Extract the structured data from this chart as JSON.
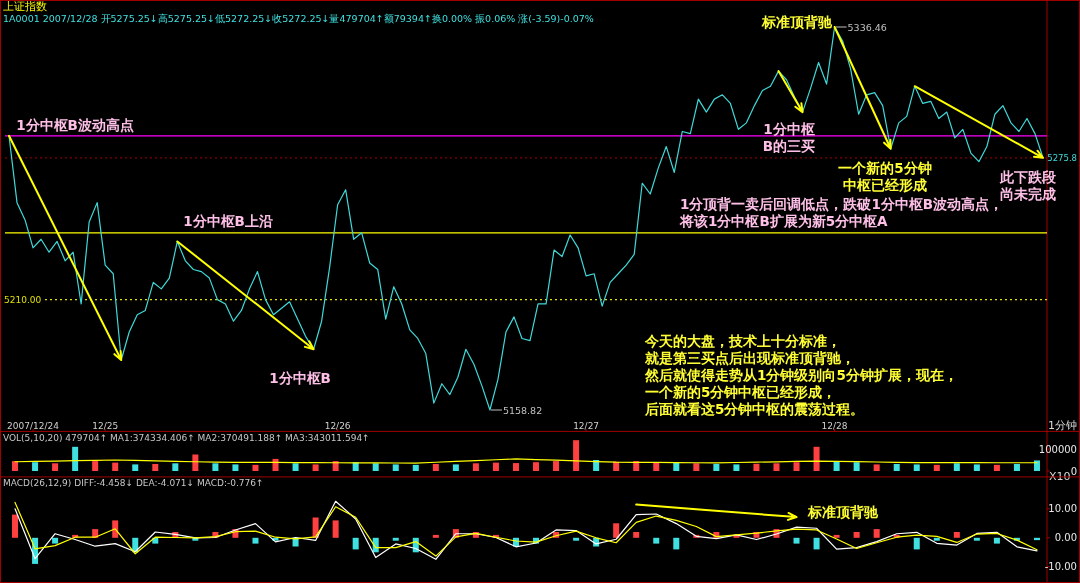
{
  "chart_data": [
    {
      "type": "line",
      "title": "上证指数",
      "subtitle": "1A0001 2007/12/28 开5275.25↓高5275.25↓低5272.25↓收5272.25↓量479704↑额79394↑换0.00% 振0.06% 涨(-3.59)-0.07%",
      "tick_labels": "x",
      "categories": [
        null,
        null,
        null,
        "2007/12/24",
        null,
        null,
        null,
        null,
        null,
        null,
        null,
        null,
        "12/25",
        null,
        null,
        null,
        null,
        null,
        null,
        null,
        null,
        null,
        null,
        null,
        null,
        null,
        null,
        null,
        null,
        null,
        null,
        null,
        null,
        null,
        null,
        null,
        null,
        null,
        null,
        null,
        null,
        "12/26",
        null,
        null,
        null,
        null,
        null,
        null,
        null,
        null,
        null,
        null,
        null,
        null,
        null,
        null,
        null,
        null,
        null,
        null,
        null,
        null,
        null,
        null,
        null,
        null,
        null,
        null,
        null,
        null,
        null,
        null,
        "12/27",
        null,
        null,
        null,
        null,
        null,
        null,
        null,
        null,
        null,
        null,
        null,
        null,
        null,
        null,
        null,
        null,
        null,
        null,
        null,
        null,
        null,
        null,
        null,
        null,
        null,
        null,
        null,
        null,
        null,
        null,
        "12/28",
        null,
        null,
        null,
        null,
        null,
        null,
        null,
        null,
        null,
        null,
        null,
        null,
        null,
        null,
        null,
        null,
        null,
        null,
        null,
        null,
        null,
        null,
        null,
        null,
        null,
        null
      ],
      "series": [
        {
          "color": "#40d8d8",
          "values": [
            5286,
            5255,
            5247,
            5234,
            5238,
            5232,
            5237,
            5228,
            5232,
            5208,
            5246,
            5255,
            5226,
            5222,
            5182,
            5195,
            5203,
            5205,
            5218,
            5215,
            5220,
            5237,
            5228,
            5224,
            5223,
            5220,
            5210,
            5208,
            5200,
            5205,
            5215,
            5223,
            5210,
            5203,
            5206,
            5209,
            5201,
            5193,
            5187,
            5200,
            5225,
            5254,
            5261,
            5238,
            5241,
            5227,
            5224,
            5201,
            5216,
            5208,
            5196,
            5192,
            5185,
            5162,
            5171,
            5166,
            5174,
            5187,
            5180,
            5170,
            5158.82,
            5173,
            5195,
            5202,
            5192,
            5191,
            5208,
            5208,
            5233,
            5230,
            5240,
            5234,
            5221,
            5222,
            5207,
            5218,
            5222,
            5226,
            5231,
            5264,
            5259,
            5271,
            5281,
            5269,
            5288,
            5287,
            5303,
            5297,
            5303,
            5305,
            5301,
            5289,
            5292,
            5300,
            5307,
            5309,
            5316,
            5312,
            5304,
            5297,
            5308,
            5320,
            5310,
            5336.46,
            5330,
            5317,
            5296,
            5305,
            5306,
            5300,
            5280,
            5292,
            5295,
            5309,
            5301,
            5302,
            5294,
            5297,
            5285,
            5289,
            5278,
            5274,
            5281,
            5296,
            5300,
            5292,
            5288,
            5294,
            5287,
            5275.8
          ],
          "value_labels": [
            null,
            null,
            null,
            null,
            null,
            null,
            null,
            null,
            null,
            null,
            null,
            null,
            null,
            null,
            null,
            null,
            null,
            null,
            null,
            null,
            null,
            null,
            null,
            null,
            null,
            null,
            null,
            null,
            null,
            null,
            null,
            null,
            null,
            null,
            null,
            null,
            null,
            null,
            null,
            null,
            null,
            null,
            null,
            null,
            null,
            null,
            null,
            null,
            null,
            null,
            null,
            null,
            null,
            null,
            null,
            null,
            null,
            null,
            null,
            null,
            "5158.82",
            null,
            null,
            null,
            null,
            null,
            null,
            null,
            null,
            null,
            null,
            null,
            null,
            null,
            null,
            null,
            null,
            null,
            null,
            null,
            null,
            null,
            null,
            null,
            null,
            null,
            null,
            null,
            null,
            null,
            null,
            null,
            null,
            null,
            null,
            null,
            null,
            null,
            null,
            null,
            null,
            null,
            null,
            "5336.46",
            null,
            null,
            null,
            null,
            null,
            null,
            null,
            null,
            null,
            null,
            null,
            null,
            null,
            null,
            null,
            null,
            null,
            null,
            null,
            null,
            null,
            null,
            null,
            null,
            null,
            null
          ]
        }
      ],
      "ref_lines": [
        {
          "axis": "y",
          "value": 5286,
          "label": null,
          "color": "#ff00ff"
        },
        {
          "axis": "y",
          "value": 5241,
          "label": null,
          "color": "#ffff00"
        },
        {
          "axis": "y",
          "value": 5210,
          "label": "5210.00",
          "color": "#e0e000",
          "line_style": "dotted"
        },
        {
          "axis": "y",
          "value": 5275.8,
          "label": "5275.8",
          "color": "#800000",
          "line_style": "dotted"
        }
      ],
      "annotations": [
        "1分中枢B波动高点",
        "1分中枢B上沿",
        "1分中枢B",
        "标准顶背驰",
        "1分中枢B的三买",
        "一个新的5分钟中枢已经形成",
        "此下跌段尚未完成",
        "1分顶背一卖后回调低点，跌破1分中枢B波动高点，将该1分中枢B扩展为新5分中枢A",
        "今天的大盘，技术上十分标准，就是第三买点后出现标准顶背驰，然后就使得走势从1分钟级别向5分钟扩展，现在，一个新的5分钟中枢已经形成，后面就看这5分钟中枢的震荡过程。",
        "1分钟"
      ]
    },
    {
      "type": "bar",
      "title": "VOL(5,10,20) 479704↑ MA1:374334.406↑ MA2:370491.188↑ MA3:343011.594↑",
      "ylim": [
        0,
        180000
      ],
      "yticks": [
        0,
        100000
      ],
      "tick_labels": "y",
      "categories": [
        null,
        null,
        null,
        null,
        null,
        null,
        null,
        null,
        null,
        null,
        null,
        null,
        null,
        null,
        null,
        null,
        null,
        null,
        null,
        null,
        null,
        null,
        null,
        null,
        null,
        null,
        null,
        null,
        null,
        null,
        null,
        null,
        null,
        null,
        null,
        null,
        null,
        null,
        null,
        null,
        null,
        null,
        null,
        null,
        null,
        null,
        null,
        null,
        null,
        null,
        null,
        null
      ],
      "series": [
        {
          "values": [
            45000,
            40000,
            35000,
            110000,
            45000,
            38000,
            30000,
            32000,
            35000,
            75000,
            35000,
            30000,
            28000,
            55000,
            35000,
            30000,
            45000,
            40000,
            35000,
            30000,
            28000,
            32000,
            30000,
            35000,
            38000,
            36000,
            40000,
            45000,
            140000,
            50000,
            42000,
            45000,
            40000,
            38000,
            35000,
            32000,
            30000,
            33000,
            35000,
            40000,
            110000,
            45000,
            40000,
            30000,
            32000,
            30000,
            28000,
            35000,
            30000,
            28000,
            32000,
            47970
          ],
          "colors": [
            "#ff4040",
            "#40e0e0",
            "#ff4040",
            "#40e0e0",
            "#ff4040",
            "#ff4040",
            "#40e0e0",
            "#ff4040",
            "#40e0e0",
            "#ff4040",
            "#40e0e0",
            "#40e0e0",
            "#ff4040",
            "#ff4040",
            "#40e0e0",
            "#ff4040",
            "#ff4040",
            "#40e0e0",
            "#40e0e0",
            "#40e0e0",
            "#40e0e0",
            "#ff4040",
            "#40e0e0",
            "#ff4040",
            "#ff4040",
            "#ff4040",
            "#ff4040",
            "#ff4040",
            "#ff4040",
            "#40e0e0",
            "#ff4040",
            "#ff4040",
            "#ff4040",
            "#40e0e0",
            "#ff4040",
            "#40e0e0",
            "#40e0e0",
            "#ff4040",
            "#ff4040",
            "#ff4040",
            "#ff4040",
            "#40e0e0",
            "#40e0e0",
            "#ff4040",
            "#40e0e0",
            "#40e0e0",
            "#ff4040",
            "#40e0e0",
            "#40e0e0",
            "#ff4040",
            "#40e0e0",
            "#40e0e0"
          ]
        },
        {
          "type": "line",
          "color": "#ffff00",
          "values": [
            42000,
            43600,
            45200,
            46800,
            48400,
            50000,
            48000,
            46000,
            44000,
            42000,
            40000,
            39600,
            39200,
            38800,
            38400,
            38000,
            37600,
            37200,
            36800,
            36400,
            36000,
            39800,
            43600,
            47400,
            51200,
            55000,
            52000,
            49000,
            46000,
            43000,
            40000,
            39400,
            38800,
            38200,
            37600,
            37000,
            38600,
            40200,
            41800,
            43400,
            45000,
            43600,
            42200,
            40800,
            39400,
            38000,
            37900,
            37800,
            37700,
            37600,
            37500,
            37433
          ]
        }
      ],
      "annotations": [
        "X10"
      ]
    },
    {
      "type": "bar",
      "title": "MACD(26,12,9) DIFF:-4.458↓ DEA:-4.071↓ MACD:-0.776↑",
      "ylim": [
        -15,
        21
      ],
      "yticks": [
        {
          "value": 10,
          "label": "10.00"
        },
        {
          "value": 0,
          "label": "0.00"
        },
        {
          "value": -10,
          "label": "-10.00"
        }
      ],
      "tick_labels": "y",
      "categories": [
        null,
        null,
        null,
        null,
        null,
        null,
        null,
        null,
        null,
        null,
        null,
        null,
        null,
        null,
        null,
        null,
        null,
        null,
        null,
        null,
        null,
        null,
        null,
        null,
        null,
        null,
        null,
        null,
        null,
        null,
        null,
        null,
        null,
        null,
        null,
        null,
        null,
        null,
        null,
        null,
        null,
        null,
        null,
        null,
        null,
        null,
        null,
        null,
        null,
        null,
        null,
        null
      ],
      "series": [
        {
          "values": [
            8,
            -9,
            -2,
            1,
            3,
            6,
            -5,
            -2,
            2,
            -1,
            2,
            3,
            -2,
            -1,
            -3,
            7,
            6,
            -4,
            -5,
            -1,
            -5,
            1,
            3,
            2,
            1,
            -3,
            -2,
            2,
            -1,
            -3,
            5,
            2,
            -2,
            -4,
            1,
            2,
            1,
            2,
            3,
            -2,
            -4,
            1,
            2,
            3,
            1,
            -4,
            -1,
            2,
            -1,
            -2,
            -1,
            -0.8
          ],
          "colors": [
            "#ff4040",
            "#40e0e0",
            "#40e0e0",
            "#ff4040",
            "#ff4040",
            "#ff4040",
            "#40e0e0",
            "#40e0e0",
            "#ff4040",
            "#40e0e0",
            "#ff4040",
            "#ff4040",
            "#40e0e0",
            "#40e0e0",
            "#40e0e0",
            "#ff4040",
            "#ff4040",
            "#40e0e0",
            "#40e0e0",
            "#40e0e0",
            "#40e0e0",
            "#ff4040",
            "#ff4040",
            "#ff4040",
            "#ff4040",
            "#40e0e0",
            "#40e0e0",
            "#ff4040",
            "#40e0e0",
            "#40e0e0",
            "#ff4040",
            "#ff4040",
            "#40e0e0",
            "#40e0e0",
            "#ff4040",
            "#ff4040",
            "#ff4040",
            "#ff4040",
            "#ff4040",
            "#40e0e0",
            "#40e0e0",
            "#ff4040",
            "#ff4040",
            "#ff4040",
            "#ff4040",
            "#40e0e0",
            "#40e0e0",
            "#ff4040",
            "#40e0e0",
            "#40e0e0",
            "#40e0e0",
            "#40e0e0"
          ]
        },
        {
          "type": "line",
          "color": "#ffffff",
          "values": [
            10,
            -7.2,
            1.4,
            -0.6,
            -2.9,
            -2,
            -4.8,
            2,
            1.2,
            0,
            0.1,
            2.7,
            4.9,
            -1.4,
            0.1,
            -0.9,
            12.6,
            6.5,
            -6.8,
            -2.1,
            -3.7,
            -7.4,
            1.4,
            1.4,
            0.1,
            -3.1,
            -1.8,
            2.7,
            2.5,
            -2.1,
            -0.5,
            8,
            8.2,
            4.9,
            0.5,
            -0.3,
            1,
            -0.6,
            1.3,
            3.7,
            3.3,
            -3.9,
            -3.4,
            -1.3,
            1.4,
            1.9,
            -1.9,
            -2.5,
            1.5,
            1.9,
            -3.1,
            -4.5
          ]
        },
        {
          "type": "line",
          "color": "#ffff00",
          "values": [
            12.2,
            -3.8,
            -2.7,
            0.2,
            0.2,
            3.1,
            -5.5,
            0.2,
            0.1,
            0,
            0.4,
            2.1,
            2.3,
            0.2,
            -0.4,
            0.3,
            10.7,
            7.1,
            -3.4,
            -3.4,
            -1.3,
            -6.3,
            0.3,
            1.5,
            0.2,
            -1.1,
            -1.5,
            0.7,
            2.3,
            0,
            -1.7,
            5.3,
            7.5,
            6,
            3.9,
            0.4,
            1,
            1.6,
            2.4,
            3,
            2.7,
            -0.4,
            -3.7,
            -1.7,
            0.2,
            0.9,
            0.5,
            -1.6,
            1.3,
            1.5,
            -0.8,
            -4.1
          ]
        }
      ],
      "annotations": [
        "标准顶背驰"
      ]
    }
  ]
}
